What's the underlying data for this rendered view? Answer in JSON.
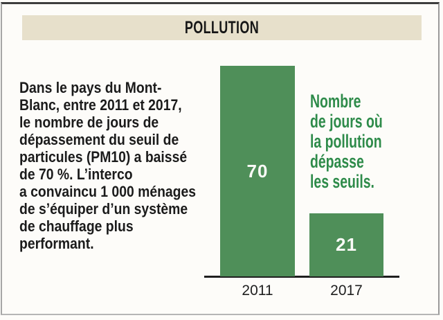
{
  "header": {
    "title": "POLLUTION"
  },
  "paragraph": {
    "lines": [
      "Dans le pays du Mont-",
      "Blanc, entre 2011 et 2017,",
      "le nombre de jours de",
      "dépassement du seuil de",
      "particules (PM10) a baissé",
      "de 70 %. L’interco",
      "a convaincu 1 000 ménages",
      "de s’équiper d’un système",
      "de chauffage plus",
      "performant."
    ]
  },
  "chart_data": {
    "type": "bar",
    "categories": [
      "2011",
      "2017"
    ],
    "values": [
      70,
      21
    ],
    "title": "POLLUTION",
    "xlabel": "",
    "ylabel": "",
    "ylim": [
      0,
      70
    ],
    "grid": false,
    "legend": "none",
    "value_labels_inside_bars": true,
    "bar_color": "#4f8f59",
    "value_label_color": "#fafaf7",
    "axis_color": "#1f1f1f",
    "annotation": {
      "lines": [
        "Nombre",
        "de jours où",
        "la pollution",
        "dépasse",
        "les seuils."
      ],
      "color": "#2e8b4a"
    }
  },
  "colors": {
    "header_bg": "#e7e0cb",
    "header_text": "#161616",
    "body_text": "#1b1b1b",
    "page_bg": "#fdfcf9"
  }
}
